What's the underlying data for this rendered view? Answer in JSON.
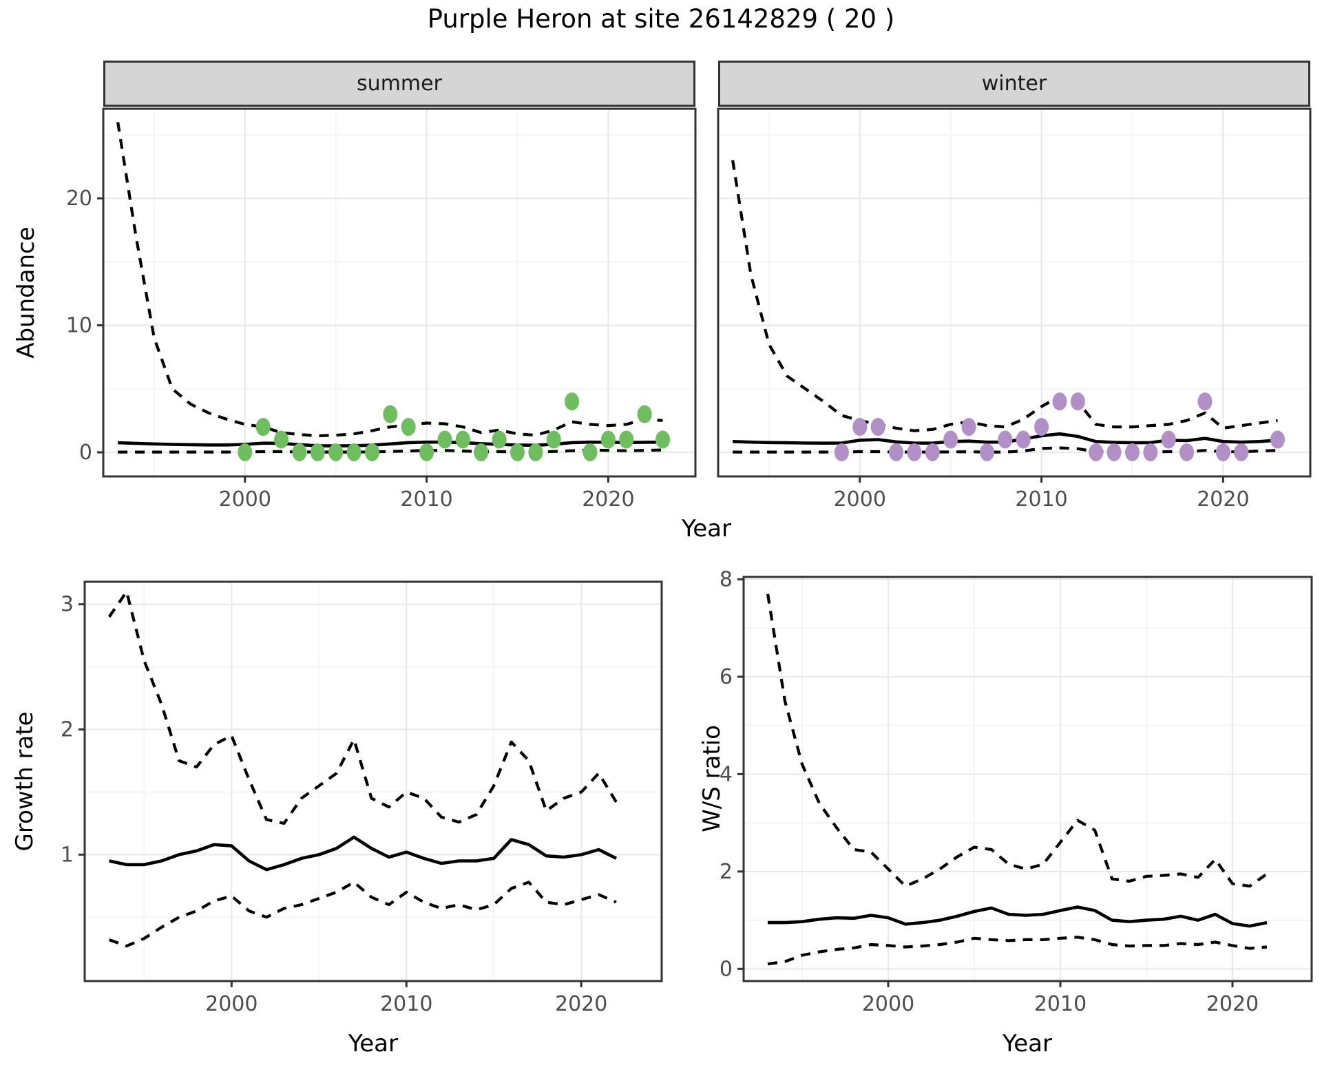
{
  "title": "Purple Heron at site 26142829 ( 20 )",
  "facets": {
    "summer": "summer",
    "winter": "winter"
  },
  "axes": {
    "year": "Year",
    "abundance": "Abundance",
    "growth": "Growth rate",
    "ws": "W/S ratio"
  },
  "colors": {
    "summer_point": "#6ebe5f",
    "winter_point": "#b18fc7",
    "line": "#000000",
    "grid_major": "#e9e9e9",
    "grid_minor": "#f4f4f4",
    "strip_bg": "#d5d5d5",
    "panel_border": "#333333",
    "tick_label": "#4d4d4d"
  },
  "chart_data": [
    {
      "id": "abundance_summer",
      "type": "line",
      "facet_label": "summer",
      "title": "Purple Heron at site 26142829 ( 20 )",
      "xlabel": "Year",
      "ylabel": "Abundance",
      "grid": true,
      "xrange": [
        1992.2,
        2024.8
      ],
      "yrange": [
        -1.9,
        27.05
      ],
      "xticks": [
        2000,
        2010,
        2020
      ],
      "yticks": [
        0,
        10,
        20
      ],
      "xticks_minor": [
        1995,
        2005,
        2015
      ],
      "yticks_minor": [
        5,
        15,
        25
      ],
      "x": [
        1993,
        1994,
        1995,
        1996,
        1997,
        1998,
        1999,
        2000,
        2001,
        2002,
        2003,
        2004,
        2005,
        2006,
        2007,
        2008,
        2009,
        2010,
        2011,
        2012,
        2013,
        2014,
        2015,
        2016,
        2017,
        2018,
        2019,
        2020,
        2021,
        2022,
        2023
      ],
      "series": [
        {
          "name": "fit",
          "style": "solid",
          "values": [
            0.75,
            0.7,
            0.66,
            0.62,
            0.6,
            0.58,
            0.58,
            0.62,
            0.72,
            0.7,
            0.6,
            0.52,
            0.5,
            0.52,
            0.56,
            0.66,
            0.76,
            0.8,
            0.8,
            0.76,
            0.68,
            0.62,
            0.57,
            0.55,
            0.63,
            0.76,
            0.8,
            0.79,
            0.77,
            0.79,
            0.8
          ]
        },
        {
          "name": "upper_ci",
          "style": "dashed",
          "values": [
            26.0,
            17.0,
            9.0,
            5.0,
            3.8,
            3.1,
            2.6,
            2.2,
            2.0,
            1.55,
            1.4,
            1.3,
            1.35,
            1.45,
            1.7,
            2.0,
            2.15,
            2.3,
            2.25,
            2.0,
            1.55,
            1.75,
            1.45,
            1.35,
            1.75,
            2.4,
            2.2,
            2.1,
            2.2,
            2.6,
            2.5
          ]
        },
        {
          "name": "lower_ci",
          "style": "dashed",
          "values": [
            0.02,
            0.02,
            0.02,
            0.02,
            0.02,
            0.02,
            0.02,
            0.03,
            0.05,
            0.05,
            0.03,
            0.02,
            0.02,
            0.02,
            0.03,
            0.06,
            0.1,
            0.15,
            0.15,
            0.1,
            0.05,
            0.05,
            0.03,
            0.03,
            0.06,
            0.12,
            0.18,
            0.15,
            0.12,
            0.15,
            0.18
          ]
        }
      ],
      "points": {
        "name": "observed-summer",
        "color": "#6ebe5f",
        "x": [
          2000,
          2001,
          2002,
          2003,
          2004,
          2005,
          2006,
          2007,
          2008,
          2009,
          2010,
          2011,
          2012,
          2013,
          2014,
          2015,
          2016,
          2017,
          2018,
          2019,
          2020,
          2021,
          2022,
          2023
        ],
        "y": [
          0,
          2,
          1,
          0,
          0,
          0,
          0,
          0,
          3,
          2,
          0,
          1,
          1,
          0,
          1,
          0,
          0,
          1,
          4,
          0,
          1,
          1,
          3,
          1
        ]
      }
    },
    {
      "id": "abundance_winter",
      "type": "line",
      "facet_label": "winter",
      "xlabel": "Year",
      "ylabel": "Abundance",
      "grid": true,
      "xrange": [
        1992.2,
        2024.8
      ],
      "yrange": [
        -1.9,
        27.05
      ],
      "xticks": [
        2000,
        2010,
        2020
      ],
      "yticks": [
        0,
        10,
        20
      ],
      "xticks_minor": [
        1995,
        2005,
        2015
      ],
      "yticks_minor": [
        5,
        15,
        25
      ],
      "x": [
        1993,
        1994,
        1995,
        1996,
        1997,
        1998,
        1999,
        2000,
        2001,
        2002,
        2003,
        2004,
        2005,
        2006,
        2007,
        2008,
        2009,
        2010,
        2011,
        2012,
        2013,
        2014,
        2015,
        2016,
        2017,
        2018,
        2019,
        2020,
        2021,
        2022,
        2023
      ],
      "series": [
        {
          "name": "fit",
          "style": "solid",
          "values": [
            0.85,
            0.8,
            0.77,
            0.75,
            0.73,
            0.72,
            0.73,
            0.95,
            1.0,
            0.82,
            0.73,
            0.72,
            0.85,
            0.88,
            0.8,
            0.8,
            1.05,
            1.3,
            1.45,
            1.25,
            0.85,
            0.78,
            0.75,
            0.76,
            0.95,
            0.92,
            1.1,
            0.85,
            0.8,
            0.85,
            0.95
          ]
        },
        {
          "name": "upper_ci",
          "style": "dashed",
          "values": [
            23.0,
            14.0,
            8.5,
            6.0,
            5.0,
            4.0,
            2.9,
            2.5,
            2.2,
            1.9,
            1.7,
            1.8,
            2.2,
            2.4,
            2.1,
            2.0,
            2.6,
            3.6,
            4.4,
            4.0,
            2.2,
            2.0,
            2.0,
            2.1,
            2.2,
            2.5,
            3.1,
            1.9,
            2.1,
            2.3,
            2.5
          ]
        },
        {
          "name": "lower_ci",
          "style": "dashed",
          "values": [
            0.02,
            0.02,
            0.02,
            0.02,
            0.02,
            0.02,
            0.02,
            0.05,
            0.05,
            0.02,
            0.02,
            0.02,
            0.03,
            0.04,
            0.02,
            0.02,
            0.1,
            0.3,
            0.35,
            0.28,
            0.05,
            0.02,
            0.02,
            0.02,
            0.05,
            0.05,
            0.15,
            0.04,
            0.04,
            0.1,
            0.15
          ]
        }
      ],
      "points": {
        "name": "observed-winter",
        "color": "#b18fc7",
        "x": [
          1999,
          2000,
          2001,
          2002,
          2003,
          2004,
          2005,
          2006,
          2007,
          2008,
          2009,
          2010,
          2011,
          2012,
          2013,
          2014,
          2015,
          2016,
          2017,
          2018,
          2019,
          2020,
          2021,
          2023
        ],
        "y": [
          0,
          2,
          2,
          0,
          0,
          0,
          1,
          2,
          0,
          1,
          1,
          2,
          4,
          4,
          0,
          0,
          0,
          0,
          1,
          0,
          4,
          0,
          0,
          1
        ]
      }
    },
    {
      "id": "growth_rate",
      "type": "line",
      "xlabel": "Year",
      "ylabel": "Growth rate",
      "grid": true,
      "xrange": [
        1991.6,
        2024.6
      ],
      "yrange": [
        -0.01,
        3.18
      ],
      "xticks": [
        2000,
        2010,
        2020
      ],
      "yticks": [
        1,
        2,
        3
      ],
      "xticks_minor": [
        1995,
        2005,
        2015
      ],
      "yticks_minor": [
        0.5,
        1.5,
        2.5
      ],
      "x": [
        1993,
        1994,
        1995,
        1996,
        1997,
        1998,
        1999,
        2000,
        2001,
        2002,
        2003,
        2004,
        2005,
        2006,
        2007,
        2008,
        2009,
        2010,
        2011,
        2012,
        2013,
        2014,
        2015,
        2016,
        2017,
        2018,
        2019,
        2020,
        2021,
        2022
      ],
      "series": [
        {
          "name": "fit",
          "style": "solid",
          "values": [
            0.95,
            0.92,
            0.92,
            0.95,
            1.0,
            1.03,
            1.08,
            1.07,
            0.95,
            0.88,
            0.92,
            0.97,
            1.0,
            1.05,
            1.14,
            1.05,
            0.98,
            1.02,
            0.97,
            0.93,
            0.95,
            0.95,
            0.97,
            1.12,
            1.08,
            0.99,
            0.98,
            1.0,
            1.04,
            0.97
          ]
        },
        {
          "name": "upper_ci",
          "style": "dashed",
          "values": [
            2.9,
            3.1,
            2.55,
            2.2,
            1.75,
            1.7,
            1.88,
            1.95,
            1.6,
            1.28,
            1.25,
            1.45,
            1.55,
            1.65,
            1.92,
            1.45,
            1.38,
            1.5,
            1.45,
            1.3,
            1.26,
            1.32,
            1.55,
            1.9,
            1.75,
            1.35,
            1.45,
            1.5,
            1.65,
            1.42
          ]
        },
        {
          "name": "lower_ci",
          "style": "dashed",
          "values": [
            0.32,
            0.27,
            0.33,
            0.42,
            0.5,
            0.55,
            0.63,
            0.67,
            0.55,
            0.5,
            0.57,
            0.6,
            0.65,
            0.7,
            0.78,
            0.66,
            0.6,
            0.7,
            0.62,
            0.57,
            0.6,
            0.56,
            0.6,
            0.73,
            0.78,
            0.62,
            0.6,
            0.64,
            0.68,
            0.62
          ]
        }
      ]
    },
    {
      "id": "ws_ratio",
      "type": "line",
      "xlabel": "Year",
      "ylabel": "W/S ratio",
      "grid": true,
      "xrange": [
        1991.6,
        2024.6
      ],
      "yrange": [
        -0.25,
        8.05
      ],
      "xticks": [
        2000,
        2010,
        2020
      ],
      "yticks": [
        0,
        2,
        4,
        6,
        8
      ],
      "xticks_minor": [
        1995,
        2005,
        2015
      ],
      "yticks_minor": [
        1,
        3,
        5,
        7
      ],
      "x": [
        1993,
        1994,
        1995,
        1996,
        1997,
        1998,
        1999,
        2000,
        2001,
        2002,
        2003,
        2004,
        2005,
        2006,
        2007,
        2008,
        2009,
        2010,
        2011,
        2012,
        2013,
        2014,
        2015,
        2016,
        2017,
        2018,
        2019,
        2020,
        2021,
        2022
      ],
      "series": [
        {
          "name": "fit",
          "style": "solid",
          "values": [
            0.95,
            0.95,
            0.97,
            1.02,
            1.05,
            1.04,
            1.1,
            1.05,
            0.92,
            0.95,
            1.0,
            1.08,
            1.18,
            1.25,
            1.12,
            1.1,
            1.12,
            1.2,
            1.27,
            1.2,
            1.0,
            0.97,
            1.0,
            1.02,
            1.08,
            1.0,
            1.12,
            0.93,
            0.88,
            0.95
          ]
        },
        {
          "name": "upper_ci",
          "style": "dashed",
          "values": [
            7.7,
            5.5,
            4.2,
            3.4,
            2.9,
            2.45,
            2.4,
            2.05,
            1.7,
            1.85,
            2.05,
            2.3,
            2.5,
            2.45,
            2.15,
            2.05,
            2.15,
            2.6,
            3.05,
            2.85,
            1.85,
            1.8,
            1.9,
            1.92,
            1.95,
            1.88,
            2.25,
            1.75,
            1.7,
            1.95
          ]
        },
        {
          "name": "lower_ci",
          "style": "dashed",
          "values": [
            0.1,
            0.15,
            0.28,
            0.35,
            0.4,
            0.43,
            0.5,
            0.48,
            0.45,
            0.47,
            0.5,
            0.55,
            0.63,
            0.6,
            0.58,
            0.6,
            0.6,
            0.63,
            0.65,
            0.6,
            0.5,
            0.47,
            0.48,
            0.48,
            0.52,
            0.5,
            0.55,
            0.48,
            0.42,
            0.45
          ]
        }
      ]
    }
  ]
}
